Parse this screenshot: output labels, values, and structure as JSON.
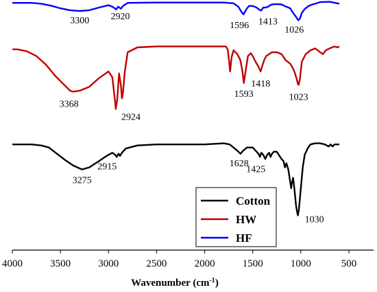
{
  "chart_data": {
    "type": "line",
    "title": "",
    "xlabel": "Wavenumber (cm",
    "xlabel_sup": "-1",
    "xlabel_close": ")",
    "ylabel": "",
    "xlim": [
      4000,
      400
    ],
    "x_reversed": true,
    "xticks": [
      4000,
      3500,
      3000,
      2500,
      2000,
      1500,
      1000,
      500
    ],
    "y_axis_shown": false,
    "grid": false,
    "legend_position": "bottom-right",
    "series": [
      {
        "name": "HF",
        "color": "#0000ff",
        "points": [
          [
            4000,
            96
          ],
          [
            3800,
            96
          ],
          [
            3700,
            94
          ],
          [
            3600,
            89
          ],
          [
            3500,
            82
          ],
          [
            3400,
            77
          ],
          [
            3300,
            75
          ],
          [
            3200,
            77
          ],
          [
            3100,
            84
          ],
          [
            3000,
            90
          ],
          [
            2960,
            86
          ],
          [
            2930,
            81
          ],
          [
            2920,
            79
          ],
          [
            2900,
            86
          ],
          [
            2870,
            81
          ],
          [
            2850,
            88
          ],
          [
            2800,
            96
          ],
          [
            2500,
            97
          ],
          [
            2000,
            97
          ],
          [
            1800,
            97
          ],
          [
            1700,
            95
          ],
          [
            1650,
            86
          ],
          [
            1620,
            74
          ],
          [
            1596,
            66
          ],
          [
            1570,
            78
          ],
          [
            1540,
            88
          ],
          [
            1500,
            88
          ],
          [
            1460,
            84
          ],
          [
            1430,
            78
          ],
          [
            1413,
            76
          ],
          [
            1390,
            84
          ],
          [
            1370,
            84
          ],
          [
            1340,
            86
          ],
          [
            1320,
            90
          ],
          [
            1300,
            92
          ],
          [
            1250,
            93
          ],
          [
            1200,
            92
          ],
          [
            1160,
            87
          ],
          [
            1110,
            82
          ],
          [
            1080,
            70
          ],
          [
            1050,
            60
          ],
          [
            1035,
            54
          ],
          [
            1026,
            51
          ],
          [
            1010,
            55
          ],
          [
            990,
            70
          ],
          [
            960,
            80
          ],
          [
            920,
            88
          ],
          [
            880,
            92
          ],
          [
            850,
            94
          ],
          [
            800,
            98
          ],
          [
            700,
            99
          ],
          [
            600,
            94
          ]
        ]
      },
      {
        "name": "HW",
        "color": "#c00000",
        "points": [
          [
            4000,
            93
          ],
          [
            3950,
            93
          ],
          [
            3850,
            91
          ],
          [
            3750,
            86
          ],
          [
            3650,
            77
          ],
          [
            3550,
            65
          ],
          [
            3450,
            55
          ],
          [
            3400,
            50
          ],
          [
            3368,
            49
          ],
          [
            3300,
            50
          ],
          [
            3200,
            54
          ],
          [
            3100,
            63
          ],
          [
            3000,
            70
          ],
          [
            2960,
            64
          ],
          [
            2940,
            46
          ],
          [
            2930,
            38
          ],
          [
            2924,
            31
          ],
          [
            2910,
            40
          ],
          [
            2890,
            68
          ],
          [
            2870,
            55
          ],
          [
            2860,
            42
          ],
          [
            2850,
            47
          ],
          [
            2830,
            70
          ],
          [
            2800,
            90
          ],
          [
            2700,
            95
          ],
          [
            2500,
            96
          ],
          [
            2000,
            96
          ],
          [
            1780,
            96
          ],
          [
            1760,
            93
          ],
          [
            1745,
            80
          ],
          [
            1735,
            70
          ],
          [
            1720,
            85
          ],
          [
            1700,
            92
          ],
          [
            1660,
            88
          ],
          [
            1630,
            82
          ],
          [
            1610,
            72
          ],
          [
            1593,
            58
          ],
          [
            1575,
            70
          ],
          [
            1550,
            86
          ],
          [
            1520,
            89
          ],
          [
            1500,
            86
          ],
          [
            1470,
            80
          ],
          [
            1440,
            75
          ],
          [
            1418,
            70
          ],
          [
            1400,
            76
          ],
          [
            1380,
            82
          ],
          [
            1360,
            86
          ],
          [
            1330,
            88
          ],
          [
            1300,
            90
          ],
          [
            1250,
            90
          ],
          [
            1200,
            88
          ],
          [
            1160,
            82
          ],
          [
            1110,
            78
          ],
          [
            1080,
            73
          ],
          [
            1060,
            68
          ],
          [
            1045,
            63
          ],
          [
            1030,
            57
          ],
          [
            1023,
            56
          ],
          [
            1010,
            62
          ],
          [
            990,
            80
          ],
          [
            950,
            88
          ],
          [
            900,
            92
          ],
          [
            850,
            94
          ],
          [
            800,
            90
          ],
          [
            770,
            88
          ],
          [
            740,
            92
          ],
          [
            700,
            94
          ],
          [
            650,
            96
          ],
          [
            620,
            95
          ],
          [
            600,
            96
          ]
        ]
      },
      {
        "name": "Cotton",
        "color": "#000000",
        "points": [
          [
            4000,
            92
          ],
          [
            3800,
            92
          ],
          [
            3700,
            91
          ],
          [
            3620,
            89
          ],
          [
            3550,
            84
          ],
          [
            3450,
            77
          ],
          [
            3370,
            72
          ],
          [
            3300,
            69
          ],
          [
            3275,
            68
          ],
          [
            3200,
            70
          ],
          [
            3100,
            76
          ],
          [
            3020,
            81
          ],
          [
            2960,
            84
          ],
          [
            2930,
            82
          ],
          [
            2915,
            80
          ],
          [
            2895,
            83
          ],
          [
            2880,
            81
          ],
          [
            2860,
            84
          ],
          [
            2820,
            88
          ],
          [
            2700,
            91
          ],
          [
            2500,
            92
          ],
          [
            2000,
            92
          ],
          [
            1800,
            93
          ],
          [
            1740,
            92
          ],
          [
            1700,
            89
          ],
          [
            1660,
            86
          ],
          [
            1628,
            83
          ],
          [
            1600,
            86
          ],
          [
            1560,
            89
          ],
          [
            1500,
            89
          ],
          [
            1470,
            86
          ],
          [
            1440,
            83
          ],
          [
            1425,
            80
          ],
          [
            1410,
            84
          ],
          [
            1390,
            82
          ],
          [
            1370,
            78
          ],
          [
            1350,
            82
          ],
          [
            1330,
            84
          ],
          [
            1315,
            80
          ],
          [
            1300,
            83
          ],
          [
            1280,
            85
          ],
          [
            1250,
            85
          ],
          [
            1215,
            80
          ],
          [
            1200,
            78
          ],
          [
            1180,
            76
          ],
          [
            1165,
            70
          ],
          [
            1150,
            74
          ],
          [
            1130,
            68
          ],
          [
            1110,
            56
          ],
          [
            1100,
            50
          ],
          [
            1095,
            54
          ],
          [
            1080,
            60
          ],
          [
            1065,
            48
          ],
          [
            1050,
            34
          ],
          [
            1040,
            28
          ],
          [
            1030,
            24
          ],
          [
            1020,
            30
          ],
          [
            1000,
            50
          ],
          [
            980,
            70
          ],
          [
            960,
            82
          ],
          [
            930,
            88
          ],
          [
            900,
            92
          ],
          [
            850,
            93
          ],
          [
            800,
            93
          ],
          [
            750,
            92
          ],
          [
            710,
            90
          ],
          [
            690,
            92
          ],
          [
            670,
            90
          ],
          [
            650,
            92
          ],
          [
            600,
            92
          ]
        ]
      }
    ],
    "peak_labels": [
      {
        "text": "3300",
        "series": "HF",
        "x": 3300
      },
      {
        "text": "2920",
        "series": "HF",
        "x": 2920
      },
      {
        "text": "1596",
        "series": "HF",
        "x": 1596
      },
      {
        "text": "1413",
        "series": "HF",
        "x": 1413
      },
      {
        "text": "1026",
        "series": "HF",
        "x": 1026
      },
      {
        "text": "3368",
        "series": "HW",
        "x": 3368
      },
      {
        "text": "2924",
        "series": "HW",
        "x": 2924
      },
      {
        "text": "1593",
        "series": "HW",
        "x": 1593
      },
      {
        "text": "1418",
        "series": "HW",
        "x": 1418
      },
      {
        "text": "1023",
        "series": "HW",
        "x": 1023
      },
      {
        "text": "3275",
        "series": "Cotton",
        "x": 3275
      },
      {
        "text": "2915",
        "series": "Cotton",
        "x": 2915
      },
      {
        "text": "1628",
        "series": "Cotton",
        "x": 1628
      },
      {
        "text": "1425",
        "series": "Cotton",
        "x": 1425
      },
      {
        "text": "1030",
        "series": "Cotton",
        "x": 1030
      }
    ],
    "legend": [
      {
        "name": "Cotton",
        "color": "#000000"
      },
      {
        "name": "HW",
        "color": "#c00000"
      },
      {
        "name": "HF",
        "color": "#0000ff"
      }
    ]
  }
}
